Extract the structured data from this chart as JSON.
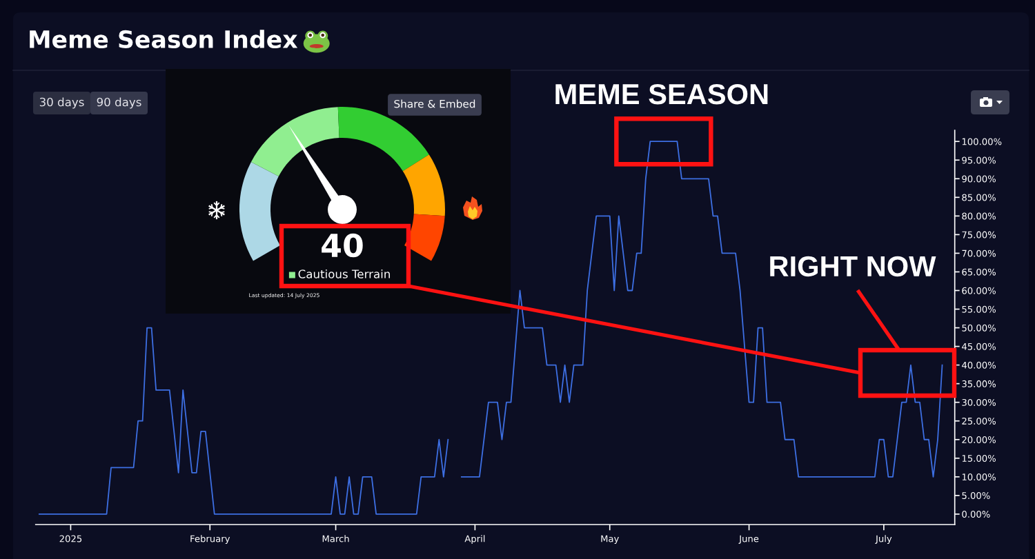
{
  "chart_data": [
    {
      "type": "line",
      "title": "Meme Season Index",
      "x": [
        "2024-12-25",
        "2025-01-09",
        "2025-01-10",
        "2025-01-15",
        "2025-01-16",
        "2025-01-17",
        "2025-01-18",
        "2025-01-19",
        "2025-01-20",
        "2025-01-23",
        "2025-01-25",
        "2025-01-26",
        "2025-01-28",
        "2025-01-29",
        "2025-01-30",
        "2025-01-31",
        "2025-02-02",
        "2025-02-28",
        "2025-03-01",
        "2025-03-02",
        "2025-03-03",
        "2025-03-04",
        "2025-03-05",
        "2025-03-06",
        "2025-03-07",
        "2025-03-09",
        "2025-03-10",
        "2025-03-19",
        "2025-03-20",
        "2025-03-23",
        "2025-03-24",
        "2025-03-25",
        "2025-03-26",
        "2025-03-27",
        "2025-03-28",
        "2025-03-29",
        "2025-04-02",
        "2025-04-04",
        "2025-04-06",
        "2025-04-07",
        "2025-04-08",
        "2025-04-09",
        "2025-04-11",
        "2025-04-12",
        "2025-04-16",
        "2025-04-17",
        "2025-04-19",
        "2025-04-20",
        "2025-04-21",
        "2025-04-22",
        "2025-04-23",
        "2025-04-25",
        "2025-04-26",
        "2025-04-28",
        "2025-05-01",
        "2025-05-02",
        "2025-05-03",
        "2025-05-05",
        "2025-05-06",
        "2025-05-07",
        "2025-05-08",
        "2025-05-09",
        "2025-05-10",
        "2025-05-16",
        "2025-05-17",
        "2025-05-23",
        "2025-05-24",
        "2025-05-25",
        "2025-05-26",
        "2025-05-29",
        "2025-05-30",
        "2025-06-01",
        "2025-06-02",
        "2025-06-03",
        "2025-06-04",
        "2025-06-05",
        "2025-06-08",
        "2025-06-09",
        "2025-06-11",
        "2025-06-12",
        "2025-06-29",
        "2025-06-30",
        "2025-07-01",
        "2025-07-02",
        "2025-07-03",
        "2025-07-05",
        "2025-07-06",
        "2025-07-07",
        "2025-07-08",
        "2025-07-09",
        "2025-07-10",
        "2025-07-11",
        "2025-07-12",
        "2025-07-13",
        "2025-07-14"
      ],
      "series": [
        {
          "color": "#3d6fe3",
          "values": [
            0,
            0,
            12.5,
            12.5,
            25,
            25,
            50,
            50,
            33.3,
            33.3,
            11.1,
            33.3,
            11.1,
            11.1,
            22.2,
            22.2,
            0,
            0,
            10,
            0,
            0,
            10,
            0,
            0,
            10,
            10,
            0,
            0,
            10,
            10,
            20,
            10,
            20,
            null,
            null,
            10,
            10,
            30,
            30,
            20,
            30,
            30,
            60,
            50,
            50,
            40,
            40,
            30,
            40,
            30,
            40,
            40,
            60,
            80,
            80,
            60,
            80,
            60,
            60,
            70,
            70,
            90,
            100,
            100,
            90,
            90,
            80,
            80,
            70,
            70,
            60,
            30,
            30,
            50,
            50,
            30,
            30,
            20,
            20,
            10,
            10,
            20,
            20,
            10,
            10,
            30,
            30,
            40,
            30,
            30,
            20,
            20,
            10,
            20,
            40
          ]
        }
      ],
      "xlim": [
        "2024-12-24T05:00",
        "2025-07-16T19:00"
      ],
      "xticks": [
        {
          "value": "2025-01-01",
          "label": "2025"
        },
        {
          "value": "2025-02-01",
          "label": "February"
        },
        {
          "value": "2025-03-01",
          "label": "March"
        },
        {
          "value": "2025-04-01",
          "label": "April"
        },
        {
          "value": "2025-05-01",
          "label": "May"
        },
        {
          "value": "2025-06-01",
          "label": "June"
        },
        {
          "value": "2025-07-01",
          "label": "July"
        }
      ],
      "ylim": [
        -2.8,
        103
      ],
      "yticks": [
        {
          "value": 0,
          "label": "0.00%"
        },
        {
          "value": 5,
          "label": "5.00%"
        },
        {
          "value": 10,
          "label": "10.00%"
        },
        {
          "value": 15,
          "label": "15.00%"
        },
        {
          "value": 20,
          "label": "20.00%"
        },
        {
          "value": 25,
          "label": "25.00%"
        },
        {
          "value": 30,
          "label": "30.00%"
        },
        {
          "value": 35,
          "label": "35.00%"
        },
        {
          "value": 40,
          "label": "40.00%"
        },
        {
          "value": 45,
          "label": "45.00%"
        },
        {
          "value": 50,
          "label": "50.00%"
        },
        {
          "value": 55,
          "label": "55.00%"
        },
        {
          "value": 60,
          "label": "60.00%"
        },
        {
          "value": 65,
          "label": "65.00%"
        },
        {
          "value": 70,
          "label": "70.00%"
        },
        {
          "value": 75,
          "label": "75.00%"
        },
        {
          "value": 80,
          "label": "80.00%"
        },
        {
          "value": 85,
          "label": "85.00%"
        },
        {
          "value": 90,
          "label": "90.00%"
        },
        {
          "value": 95,
          "label": "95.00%"
        },
        {
          "value": 100,
          "label": "100.00%"
        }
      ],
      "line_style": "solid",
      "annotations": [
        "30 days",
        "90 days",
        {
          "text": "MEME SEASON",
          "x": "2025-05-13",
          "y": 100
        },
        "RIGHT NOW"
      ]
    },
    {
      "type": "donut",
      "categories": [
        null,
        "Cautious Terrain",
        null,
        null,
        null
      ],
      "values": [
        24,
        25,
        25,
        15,
        11
      ],
      "colors": [
        "#add8e6",
        "#90ee90",
        "#32cd32",
        "#ffa500",
        "#ff4500"
      ],
      "needle": "Cautious Terrain",
      "annotations": [
        "40",
        "Last updated: 14 July 2025",
        "Share & Embed"
      ]
    }
  ]
}
